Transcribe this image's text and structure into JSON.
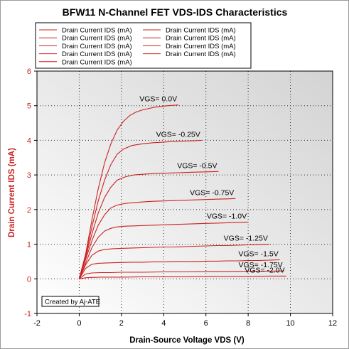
{
  "colors": {
    "series": "#cc2222",
    "accent": "#cc2222",
    "axis": "#000000",
    "grid": "#303030"
  },
  "chart_data": {
    "type": "line",
    "title": "BFW11 N-Channel FET VDS-IDS Characteristics",
    "xlabel": "Drain-Source Voltage VDS (V)",
    "ylabel": "Drain Current IDS (mA)",
    "xlim": [
      -2,
      12
    ],
    "ylim": [
      -1,
      6
    ],
    "x_ticks": [
      "-2",
      "0",
      "2",
      "4",
      "6",
      "8",
      "10",
      "12"
    ],
    "y_ticks": [
      "-1",
      "0",
      "1",
      "2",
      "3",
      "4",
      "5",
      "6"
    ],
    "grid": "dotted",
    "legend_position": "top-left",
    "legend": [
      "Drain Current IDS (mA)",
      "Drain Current IDS (mA)",
      "Drain Current IDS (mA)",
      "Drain Current IDS (mA)",
      "Drain Current IDS (mA)",
      "Drain Current IDS (mA)",
      "Drain Current IDS (mA)",
      "Drain Current IDS (mA)",
      "Drain Current IDS (mA)"
    ],
    "credit": "Created by Aj-ATE",
    "series": [
      {
        "label": "VGS=  0.0V",
        "x": [
          0,
          0.3,
          0.6,
          0.9,
          1.2,
          1.5,
          1.8,
          2.1,
          2.4,
          2.7,
          3.0,
          3.3,
          3.6,
          3.9,
          4.2,
          4.7
        ],
        "y": [
          0,
          0.7,
          1.7,
          2.6,
          3.35,
          3.9,
          4.3,
          4.55,
          4.72,
          4.82,
          4.88,
          4.92,
          4.96,
          4.98,
          5.0,
          5.02
        ]
      },
      {
        "label": "VGS= -0.25V",
        "x": [
          0,
          0.3,
          0.6,
          0.9,
          1.2,
          1.5,
          1.8,
          2.1,
          2.5,
          3.0,
          3.5,
          4.0,
          4.5,
          5.0,
          5.5,
          5.8
        ],
        "y": [
          0,
          0.65,
          1.5,
          2.25,
          2.85,
          3.3,
          3.6,
          3.75,
          3.85,
          3.9,
          3.93,
          3.95,
          3.97,
          3.98,
          3.99,
          4.0
        ]
      },
      {
        "label": "VGS= -0.5V",
        "x": [
          0,
          0.3,
          0.6,
          0.9,
          1.2,
          1.5,
          1.8,
          2.2,
          2.6,
          3.0,
          3.5,
          4.0,
          4.5,
          5.0,
          5.5,
          6.0,
          6.6
        ],
        "y": [
          0,
          0.6,
          1.3,
          1.9,
          2.35,
          2.65,
          2.85,
          2.95,
          3.0,
          3.02,
          3.04,
          3.05,
          3.06,
          3.07,
          3.08,
          3.09,
          3.1
        ]
      },
      {
        "label": "VGS= -0.75V",
        "x": [
          0,
          0.3,
          0.6,
          0.9,
          1.2,
          1.5,
          1.8,
          2.2,
          2.6,
          3.0,
          3.5,
          4.0,
          4.5,
          5.0,
          5.5,
          6.0,
          6.5,
          7.0,
          7.4
        ],
        "y": [
          0,
          0.55,
          1.1,
          1.55,
          1.85,
          2.05,
          2.13,
          2.18,
          2.2,
          2.22,
          2.24,
          2.25,
          2.26,
          2.27,
          2.28,
          2.29,
          2.3,
          2.31,
          2.32
        ]
      },
      {
        "label": "VGS= -1.0V",
        "x": [
          0,
          0.3,
          0.6,
          0.9,
          1.2,
          1.5,
          1.8,
          2.2,
          2.6,
          3.0,
          3.5,
          4.0,
          4.5,
          5.0,
          5.5,
          6.0,
          6.5,
          7.0,
          7.5,
          8.0
        ],
        "y": [
          0,
          0.45,
          0.9,
          1.2,
          1.38,
          1.46,
          1.5,
          1.52,
          1.53,
          1.54,
          1.55,
          1.56,
          1.57,
          1.58,
          1.59,
          1.6,
          1.61,
          1.62,
          1.63,
          1.64
        ]
      },
      {
        "label": "VGS= -1.25V",
        "x": [
          0,
          0.3,
          0.6,
          0.9,
          1.2,
          1.6,
          2.0,
          2.5,
          3.0,
          3.5,
          4.0,
          4.5,
          5.0,
          5.5,
          6.0,
          6.5,
          7.0,
          7.5,
          8.0,
          8.5,
          9.0
        ],
        "y": [
          0,
          0.4,
          0.68,
          0.8,
          0.85,
          0.87,
          0.88,
          0.89,
          0.9,
          0.91,
          0.92,
          0.92,
          0.93,
          0.94,
          0.95,
          0.96,
          0.96,
          0.97,
          0.98,
          0.99,
          1.0
        ]
      },
      {
        "label": "VGS= -1.5V",
        "x": [
          0,
          0.3,
          0.6,
          0.9,
          1.3,
          1.8,
          2.5,
          3.0,
          3.5,
          4.0,
          4.5,
          5.0,
          5.5,
          6.0,
          6.5,
          7.0,
          7.5,
          8.0,
          8.5,
          9.0,
          9.5
        ],
        "y": [
          0,
          0.3,
          0.42,
          0.45,
          0.46,
          0.47,
          0.48,
          0.48,
          0.49,
          0.49,
          0.5,
          0.5,
          0.5,
          0.51,
          0.51,
          0.52,
          0.52,
          0.53,
          0.53,
          0.54,
          0.55
        ]
      },
      {
        "label": "VGS= -1.75V",
        "x": [
          0,
          0.3,
          0.6,
          1.0,
          1.5,
          2.0,
          3.0,
          4.0,
          5.0,
          6.0,
          7.0,
          8.0,
          9.0,
          9.7
        ],
        "y": [
          0,
          0.14,
          0.17,
          0.18,
          0.18,
          0.19,
          0.19,
          0.2,
          0.2,
          0.21,
          0.21,
          0.22,
          0.22,
          0.23
        ]
      },
      {
        "label": "VGS= -2.0V",
        "x": [
          0,
          0.3,
          0.6,
          1.0,
          2.0,
          3.0,
          4.0,
          5.0,
          6.0,
          7.0,
          8.0,
          9.0,
          9.8
        ],
        "y": [
          0,
          0.03,
          0.04,
          0.05,
          0.05,
          0.06,
          0.06,
          0.06,
          0.07,
          0.07,
          0.07,
          0.08,
          0.08
        ]
      }
    ]
  }
}
